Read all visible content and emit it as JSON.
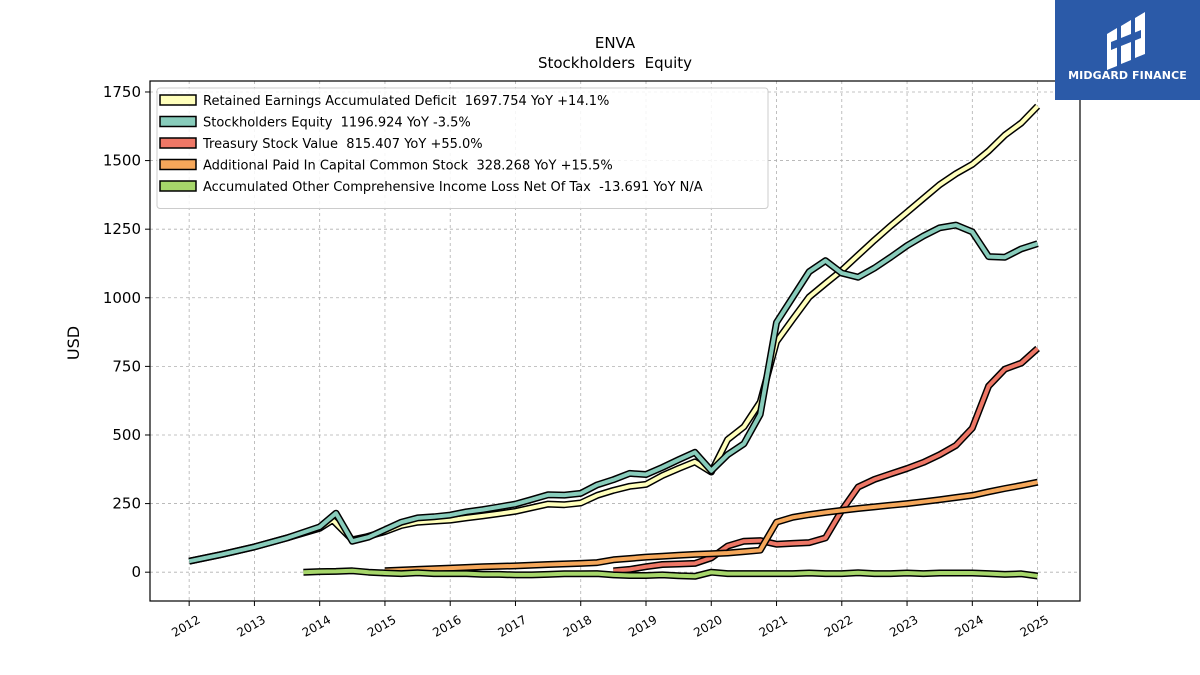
{
  "brand": {
    "name": "MIDGARD FINANCE",
    "bg_color": "#2b5aa8"
  },
  "chart_data": {
    "type": "line",
    "title": "ENVA",
    "subtitle": "Stockholders  Equity",
    "ylabel": "USD",
    "xlabel": "",
    "xlim": [
      2011.4,
      2025.65
    ],
    "ylim": [
      -105,
      1790
    ],
    "x_ticks": [
      2012,
      2013,
      2014,
      2015,
      2016,
      2017,
      2018,
      2019,
      2020,
      2021,
      2022,
      2023,
      2024,
      2025
    ],
    "y_ticks": [
      0,
      250,
      500,
      750,
      1000,
      1250,
      1500,
      1750
    ],
    "grid": true,
    "legend_position": "top-left",
    "series": [
      {
        "name": "Retained Earnings Accumulated Deficit  1697.754 YoY +14.1%",
        "color": "#ffffbb",
        "points": [
          [
            2012.0,
            40
          ],
          [
            2012.5,
            65
          ],
          [
            2013.0,
            92
          ],
          [
            2013.5,
            125
          ],
          [
            2014.0,
            160
          ],
          [
            2014.2,
            190
          ],
          [
            2014.5,
            118
          ],
          [
            2014.7,
            128
          ],
          [
            2015.0,
            148
          ],
          [
            2015.25,
            170
          ],
          [
            2015.5,
            182
          ],
          [
            2015.75,
            186
          ],
          [
            2016.0,
            190
          ],
          [
            2016.25,
            198
          ],
          [
            2016.5,
            205
          ],
          [
            2016.75,
            213
          ],
          [
            2017.0,
            222
          ],
          [
            2017.25,
            235
          ],
          [
            2017.5,
            248
          ],
          [
            2017.75,
            246
          ],
          [
            2018.0,
            252
          ],
          [
            2018.25,
            280
          ],
          [
            2018.5,
            298
          ],
          [
            2018.75,
            313
          ],
          [
            2019.0,
            320
          ],
          [
            2019.25,
            352
          ],
          [
            2019.5,
            378
          ],
          [
            2019.75,
            402
          ],
          [
            2020.0,
            365
          ],
          [
            2020.25,
            483
          ],
          [
            2020.5,
            530
          ],
          [
            2020.75,
            620
          ],
          [
            2021.0,
            840
          ],
          [
            2021.25,
            922
          ],
          [
            2021.5,
            1003
          ],
          [
            2021.75,
            1052
          ],
          [
            2022.0,
            1100
          ],
          [
            2022.25,
            1155
          ],
          [
            2022.5,
            1210
          ],
          [
            2022.75,
            1262
          ],
          [
            2023.0,
            1312
          ],
          [
            2023.25,
            1362
          ],
          [
            2023.5,
            1412
          ],
          [
            2023.75,
            1452
          ],
          [
            2024.0,
            1486
          ],
          [
            2024.25,
            1535
          ],
          [
            2024.5,
            1593
          ],
          [
            2024.75,
            1637
          ],
          [
            2025.0,
            1698
          ]
        ]
      },
      {
        "name": "Stockholders Equity  1196.924 YoY -3.5%",
        "color": "#88ccbb",
        "points": [
          [
            2012.0,
            40
          ],
          [
            2012.5,
            65
          ],
          [
            2013.0,
            92
          ],
          [
            2013.5,
            125
          ],
          [
            2014.0,
            165
          ],
          [
            2014.25,
            215
          ],
          [
            2014.5,
            113
          ],
          [
            2014.75,
            128
          ],
          [
            2015.0,
            155
          ],
          [
            2015.25,
            182
          ],
          [
            2015.5,
            198
          ],
          [
            2015.75,
            202
          ],
          [
            2016.0,
            208
          ],
          [
            2016.25,
            220
          ],
          [
            2016.5,
            228
          ],
          [
            2016.75,
            238
          ],
          [
            2017.0,
            248
          ],
          [
            2017.25,
            265
          ],
          [
            2017.5,
            282
          ],
          [
            2017.75,
            281
          ],
          [
            2018.0,
            287
          ],
          [
            2018.25,
            318
          ],
          [
            2018.5,
            337
          ],
          [
            2018.75,
            360
          ],
          [
            2019.0,
            356
          ],
          [
            2019.25,
            382
          ],
          [
            2019.5,
            410
          ],
          [
            2019.75,
            437
          ],
          [
            2020.0,
            370
          ],
          [
            2020.25,
            428
          ],
          [
            2020.5,
            468
          ],
          [
            2020.75,
            575
          ],
          [
            2021.0,
            910
          ],
          [
            2021.25,
            1002
          ],
          [
            2021.5,
            1095
          ],
          [
            2021.75,
            1135
          ],
          [
            2022.0,
            1090
          ],
          [
            2022.25,
            1075
          ],
          [
            2022.5,
            1108
          ],
          [
            2022.75,
            1148
          ],
          [
            2023.0,
            1190
          ],
          [
            2023.25,
            1225
          ],
          [
            2023.5,
            1255
          ],
          [
            2023.75,
            1265
          ],
          [
            2024.0,
            1240
          ],
          [
            2024.25,
            1150
          ],
          [
            2024.5,
            1148
          ],
          [
            2024.75,
            1178
          ],
          [
            2025.0,
            1197
          ]
        ]
      },
      {
        "name": "Treasury Stock Value  815.407 YoY +55.0%",
        "color": "#ee7766",
        "points": [
          [
            2018.5,
            5
          ],
          [
            2018.75,
            10
          ],
          [
            2019.0,
            20
          ],
          [
            2019.25,
            28
          ],
          [
            2019.5,
            30
          ],
          [
            2019.75,
            32
          ],
          [
            2020.0,
            52
          ],
          [
            2020.25,
            95
          ],
          [
            2020.5,
            113
          ],
          [
            2020.75,
            115
          ],
          [
            2021.0,
            102
          ],
          [
            2021.25,
            105
          ],
          [
            2021.5,
            108
          ],
          [
            2021.75,
            125
          ],
          [
            2022.0,
            225
          ],
          [
            2022.25,
            310
          ],
          [
            2022.5,
            338
          ],
          [
            2022.75,
            358
          ],
          [
            2023.0,
            378
          ],
          [
            2023.25,
            400
          ],
          [
            2023.5,
            428
          ],
          [
            2023.75,
            462
          ],
          [
            2024.0,
            525
          ],
          [
            2024.25,
            678
          ],
          [
            2024.5,
            740
          ],
          [
            2024.75,
            762
          ],
          [
            2025.0,
            815
          ]
        ]
      },
      {
        "name": "Additional Paid In Capital Common Stock  328.268 YoY +15.5%",
        "color": "#f5a75a",
        "points": [
          [
            2015.0,
            5
          ],
          [
            2015.5,
            10
          ],
          [
            2016.0,
            15
          ],
          [
            2016.5,
            20
          ],
          [
            2017.0,
            23
          ],
          [
            2017.5,
            28
          ],
          [
            2018.0,
            32
          ],
          [
            2018.25,
            35
          ],
          [
            2018.5,
            45
          ],
          [
            2018.75,
            50
          ],
          [
            2019.0,
            55
          ],
          [
            2019.25,
            58
          ],
          [
            2019.5,
            62
          ],
          [
            2019.75,
            65
          ],
          [
            2020.0,
            67
          ],
          [
            2020.25,
            70
          ],
          [
            2020.5,
            75
          ],
          [
            2020.75,
            80
          ],
          [
            2021.0,
            182
          ],
          [
            2021.25,
            200
          ],
          [
            2021.5,
            210
          ],
          [
            2021.75,
            218
          ],
          [
            2022.0,
            225
          ],
          [
            2022.25,
            232
          ],
          [
            2022.5,
            238
          ],
          [
            2022.75,
            244
          ],
          [
            2023.0,
            250
          ],
          [
            2023.25,
            257
          ],
          [
            2023.5,
            264
          ],
          [
            2023.75,
            272
          ],
          [
            2024.0,
            280
          ],
          [
            2024.25,
            293
          ],
          [
            2024.5,
            305
          ],
          [
            2024.75,
            316
          ],
          [
            2025.0,
            328
          ]
        ]
      },
      {
        "name": "Accumulated Other Comprehensive Income Loss Net Of Tax  -13.691 YoY N/A",
        "color": "#a6d66a",
        "points": [
          [
            2013.75,
            0
          ],
          [
            2014.0,
            2
          ],
          [
            2014.25,
            3
          ],
          [
            2014.5,
            5
          ],
          [
            2014.75,
            0
          ],
          [
            2015.0,
            -3
          ],
          [
            2015.25,
            -5
          ],
          [
            2015.5,
            -2
          ],
          [
            2015.75,
            -5
          ],
          [
            2016.0,
            -5
          ],
          [
            2016.25,
            -5
          ],
          [
            2016.5,
            -8
          ],
          [
            2016.75,
            -8
          ],
          [
            2017.0,
            -10
          ],
          [
            2017.25,
            -10
          ],
          [
            2017.5,
            -8
          ],
          [
            2017.75,
            -6
          ],
          [
            2018.0,
            -6
          ],
          [
            2018.25,
            -5
          ],
          [
            2018.5,
            -10
          ],
          [
            2018.75,
            -12
          ],
          [
            2019.0,
            -12
          ],
          [
            2019.25,
            -10
          ],
          [
            2019.5,
            -13
          ],
          [
            2019.75,
            -15
          ],
          [
            2020.0,
            0
          ],
          [
            2020.25,
            -5
          ],
          [
            2020.5,
            -5
          ],
          [
            2020.75,
            -5
          ],
          [
            2021.0,
            -5
          ],
          [
            2021.25,
            -5
          ],
          [
            2021.5,
            -3
          ],
          [
            2021.75,
            -5
          ],
          [
            2022.0,
            -5
          ],
          [
            2022.25,
            -2
          ],
          [
            2022.5,
            -5
          ],
          [
            2022.75,
            -5
          ],
          [
            2023.0,
            -3
          ],
          [
            2023.25,
            -5
          ],
          [
            2023.5,
            -3
          ],
          [
            2023.75,
            -3
          ],
          [
            2024.0,
            -3
          ],
          [
            2024.25,
            -5
          ],
          [
            2024.5,
            -8
          ],
          [
            2024.75,
            -6
          ],
          [
            2025.0,
            -14
          ]
        ]
      }
    ]
  }
}
